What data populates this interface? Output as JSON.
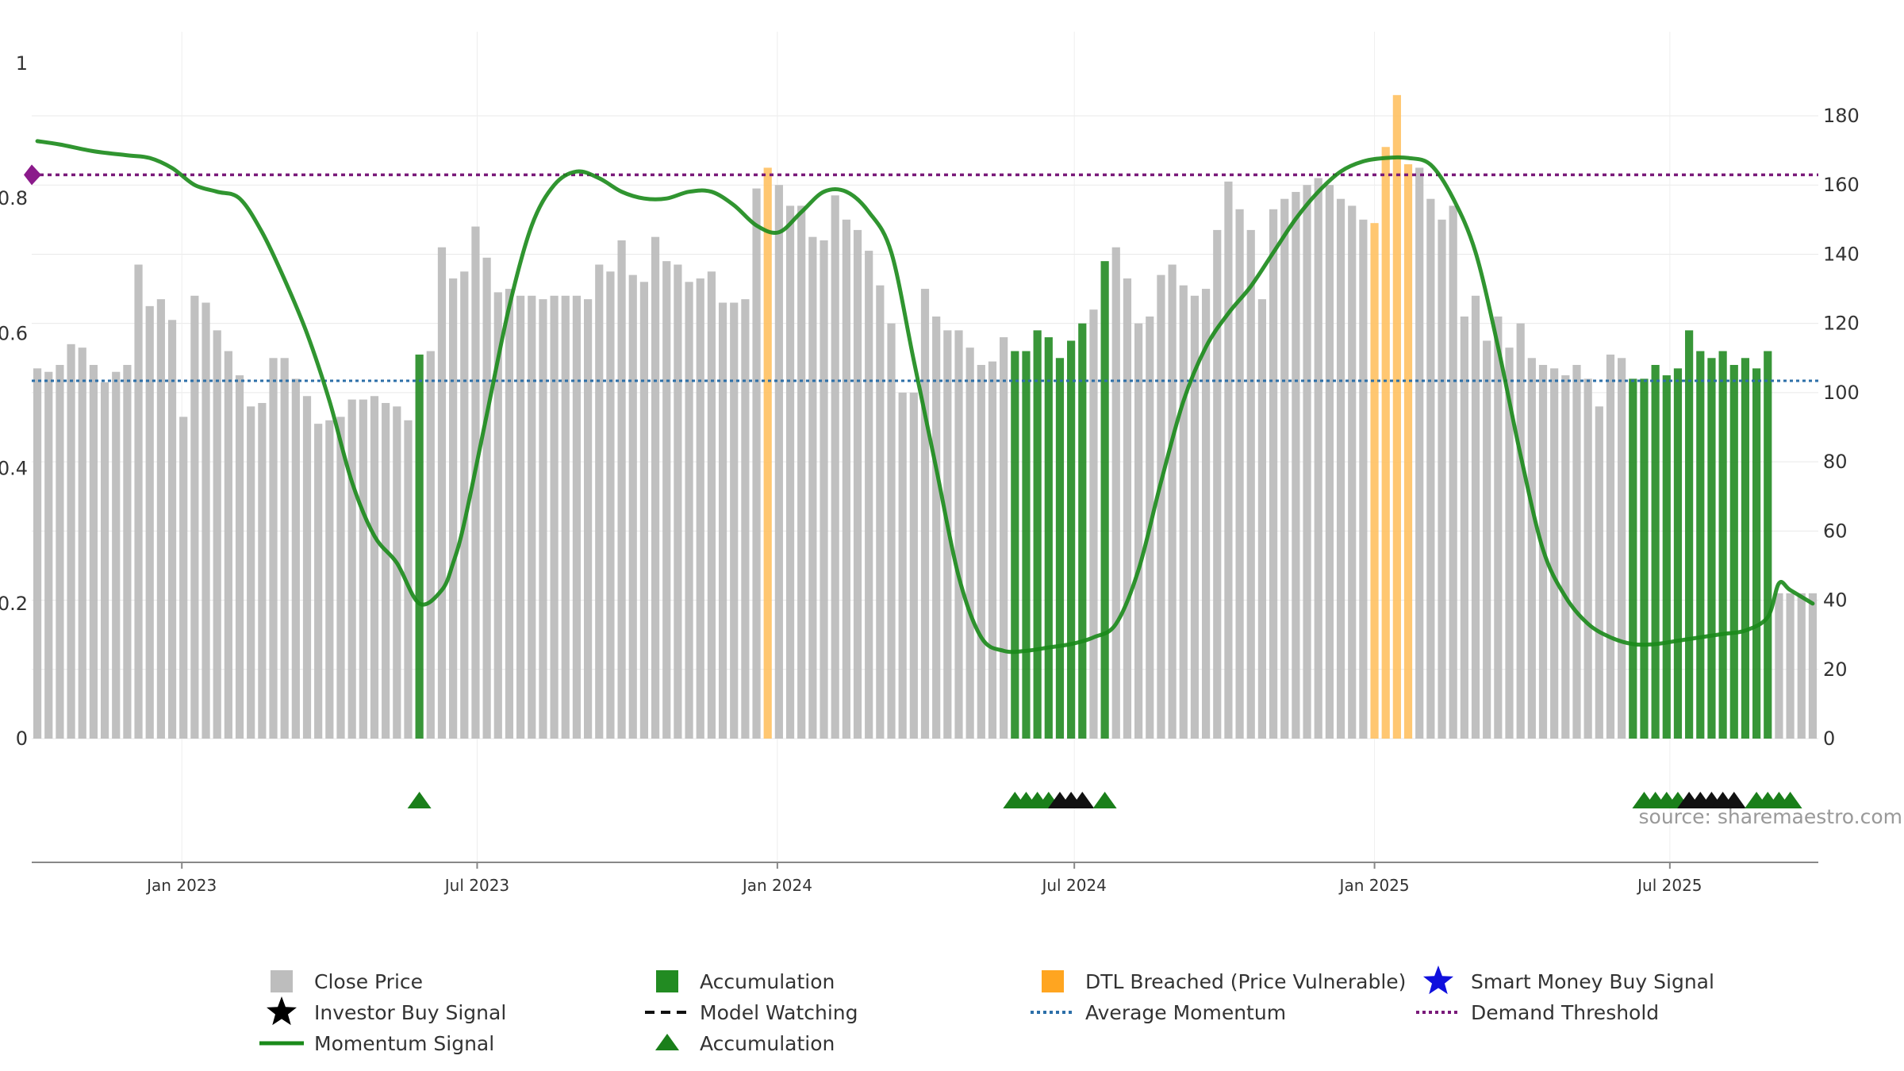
{
  "chart_data": {
    "type": "bar",
    "x_range": [
      "2022-10-01",
      "2025-09-30"
    ],
    "x_ticks": [
      "Jan 2023",
      "Jul 2023",
      "Jan 2024",
      "Jul 2024",
      "Jan 2025",
      "Jul 2025"
    ],
    "left_axis": {
      "ticks": [
        "0",
        "0.2",
        "0.4",
        "0.6",
        "0.8",
        "1"
      ],
      "range": [
        0,
        1.1
      ]
    },
    "right_axis": {
      "ticks": [
        "0",
        "20",
        "40",
        "60",
        "80",
        "100",
        "120",
        "140",
        "160",
        "180"
      ],
      "range": [
        0,
        180
      ]
    },
    "grid": true,
    "bar_colors": {
      "close": "#bdbdbd",
      "accumulation": "#228b22",
      "dtl": "#ffc469"
    },
    "price_series": {
      "name": "Close Price",
      "start": "2022-10-01",
      "step_days": 7,
      "values": [
        107,
        106,
        108,
        114,
        113,
        108,
        103,
        106,
        108,
        137,
        125,
        127,
        121,
        93,
        128,
        126,
        118,
        112,
        105,
        96,
        97,
        110,
        110,
        104,
        99,
        91,
        92,
        93,
        98,
        98,
        99,
        97,
        96,
        92,
        111,
        112,
        142,
        133,
        135,
        148,
        139,
        129,
        130,
        128,
        128,
        127,
        128,
        128,
        128,
        127,
        137,
        135,
        144,
        134,
        132,
        145,
        138,
        137,
        132,
        133,
        135,
        126,
        126,
        127,
        159,
        165,
        160,
        154,
        154,
        145,
        144,
        157,
        150,
        147,
        141,
        131,
        120,
        100,
        100,
        130,
        122,
        118,
        118,
        113,
        108,
        109,
        116,
        112,
        112,
        118,
        116,
        110,
        115,
        120,
        124,
        138,
        142,
        133,
        120,
        122,
        134,
        137,
        131,
        128,
        130,
        147,
        161,
        153,
        147,
        127,
        153,
        156,
        158,
        160,
        162,
        160,
        156,
        154,
        150,
        149,
        171,
        186,
        166,
        165,
        156,
        150,
        154,
        122,
        128,
        115,
        122,
        113,
        120,
        110,
        108,
        107,
        105,
        108,
        104,
        96,
        111,
        110,
        104,
        104,
        108,
        105,
        107,
        118,
        112,
        110,
        112,
        108,
        110,
        107,
        112,
        42,
        42,
        42,
        42
      ]
    },
    "series_types": {
      "accumulation_ranges": [
        [
          34,
          34
        ],
        [
          87,
          93
        ],
        [
          95,
          95
        ],
        [
          142,
          152
        ],
        [
          153,
          154
        ]
      ],
      "dtl_ranges": [
        [
          65,
          65
        ],
        [
          119,
          122
        ]
      ]
    },
    "momentum_signal": {
      "name": "Momentum Signal",
      "points": [
        [
          0,
          0.885
        ],
        [
          2,
          0.88
        ],
        [
          5,
          0.87
        ],
        [
          8,
          0.864
        ],
        [
          10,
          0.86
        ],
        [
          12,
          0.845
        ],
        [
          14,
          0.82
        ],
        [
          16,
          0.81
        ],
        [
          18,
          0.8
        ],
        [
          20,
          0.75
        ],
        [
          22,
          0.68
        ],
        [
          24,
          0.6
        ],
        [
          26,
          0.5
        ],
        [
          28,
          0.38
        ],
        [
          30,
          0.3
        ],
        [
          32,
          0.26
        ],
        [
          34,
          0.2
        ],
        [
          36,
          0.22
        ],
        [
          37,
          0.26
        ],
        [
          38,
          0.32
        ],
        [
          40,
          0.48
        ],
        [
          42,
          0.64
        ],
        [
          44,
          0.76
        ],
        [
          46,
          0.82
        ],
        [
          48,
          0.84
        ],
        [
          50,
          0.83
        ],
        [
          52,
          0.81
        ],
        [
          54,
          0.8
        ],
        [
          56,
          0.8
        ],
        [
          58,
          0.81
        ],
        [
          60,
          0.81
        ],
        [
          62,
          0.79
        ],
        [
          64,
          0.76
        ],
        [
          66,
          0.75
        ],
        [
          68,
          0.78
        ],
        [
          70,
          0.81
        ],
        [
          72,
          0.81
        ],
        [
          74,
          0.78
        ],
        [
          76,
          0.72
        ],
        [
          78,
          0.56
        ],
        [
          80,
          0.4
        ],
        [
          82,
          0.24
        ],
        [
          84,
          0.15
        ],
        [
          86,
          0.13
        ],
        [
          88,
          0.13
        ],
        [
          90,
          0.135
        ],
        [
          92,
          0.14
        ],
        [
          94,
          0.15
        ],
        [
          96,
          0.17
        ],
        [
          98,
          0.25
        ],
        [
          100,
          0.38
        ],
        [
          102,
          0.5
        ],
        [
          104,
          0.58
        ],
        [
          106,
          0.63
        ],
        [
          108,
          0.67
        ],
        [
          110,
          0.72
        ],
        [
          112,
          0.77
        ],
        [
          114,
          0.81
        ],
        [
          116,
          0.84
        ],
        [
          118,
          0.855
        ],
        [
          120,
          0.86
        ],
        [
          122,
          0.86
        ],
        [
          124,
          0.85
        ],
        [
          126,
          0.8
        ],
        [
          128,
          0.72
        ],
        [
          130,
          0.58
        ],
        [
          132,
          0.42
        ],
        [
          134,
          0.28
        ],
        [
          136,
          0.21
        ],
        [
          138,
          0.17
        ],
        [
          140,
          0.15
        ],
        [
          142,
          0.14
        ],
        [
          144,
          0.14
        ],
        [
          146,
          0.145
        ],
        [
          148,
          0.15
        ],
        [
          150,
          0.155
        ],
        [
          152,
          0.16
        ],
        [
          154,
          0.18
        ],
        [
          155,
          0.23
        ],
        [
          156,
          0.22
        ],
        [
          158,
          0.2
        ]
      ]
    },
    "average_momentum": {
      "name": "Average Momentum",
      "value": 0.53
    },
    "demand_threshold": {
      "name": "Demand Threshold",
      "value": 0.835
    },
    "accumulation_markers": [
      {
        "index": 34,
        "color": "green"
      },
      {
        "index": 87,
        "color": "green"
      },
      {
        "index": 88,
        "color": "green"
      },
      {
        "index": 89,
        "color": "green"
      },
      {
        "index": 90,
        "color": "green"
      },
      {
        "index": 91,
        "color": "black"
      },
      {
        "index": 92,
        "color": "black"
      },
      {
        "index": 93,
        "color": "black"
      },
      {
        "index": 95,
        "color": "green"
      },
      {
        "index": 143,
        "color": "green"
      },
      {
        "index": 144,
        "color": "green"
      },
      {
        "index": 145,
        "color": "green"
      },
      {
        "index": 146,
        "color": "green"
      },
      {
        "index": 147,
        "color": "black"
      },
      {
        "index": 148,
        "color": "black"
      },
      {
        "index": 149,
        "color": "black"
      },
      {
        "index": 150,
        "color": "black"
      },
      {
        "index": 151,
        "color": "black"
      },
      {
        "index": 153,
        "color": "green"
      },
      {
        "index": 154,
        "color": "green"
      },
      {
        "index": 155,
        "color": "green"
      },
      {
        "index": 156,
        "color": "green"
      }
    ],
    "legend": [
      {
        "key": "close",
        "label": "Close Price",
        "symbol": "gray-square"
      },
      {
        "key": "accumulation",
        "label": "Accumulation",
        "symbol": "green-square"
      },
      {
        "key": "dtl",
        "label": "DTL Breached (Price Vulnerable)",
        "symbol": "orange-square"
      },
      {
        "key": "smart",
        "label": "Smart Money Buy Signal",
        "symbol": "blue-star"
      },
      {
        "key": "investor",
        "label": "Investor Buy Signal",
        "symbol": "black-star"
      },
      {
        "key": "watching",
        "label": "Model Watching",
        "symbol": "black-dash"
      },
      {
        "key": "avg",
        "label": "Average Momentum",
        "symbol": "blue-dotted"
      },
      {
        "key": "demand",
        "label": "Demand Threshold",
        "symbol": "purple-dotted"
      },
      {
        "key": "momentum",
        "label": "Momentum Signal",
        "symbol": "green-line"
      },
      {
        "key": "acc_tri",
        "label": "Accumulation",
        "symbol": "green-triangle"
      }
    ],
    "source": "source: sharemaestro.com"
  }
}
